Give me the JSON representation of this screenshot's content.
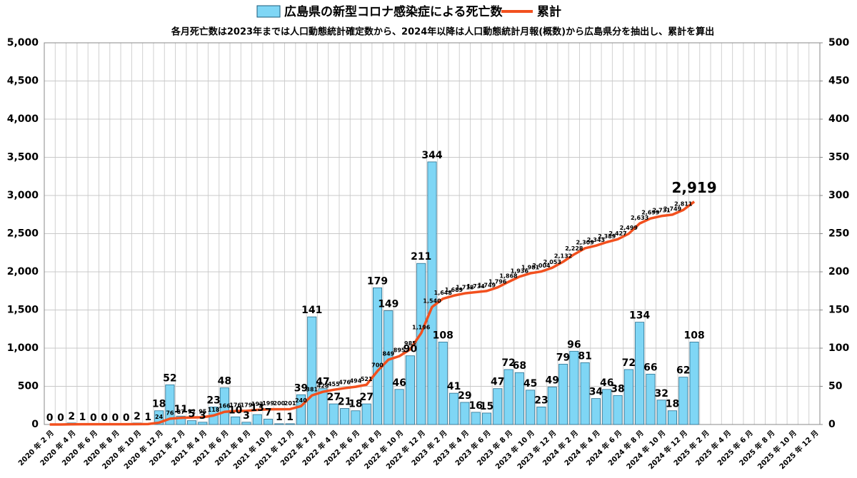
{
  "chart_data": {
    "type": "bar+line",
    "subtitle": "各月死亡数は2023年までは人口動態統計確定数から、2024年以降は人口動態統計月報(概数)から広島県分を抽出し、累計を算出",
    "categories": [
      "2020 年 2 月",
      null,
      "2020 年 4 月",
      null,
      "2020 年 6 月",
      null,
      "2020 年 8 月",
      null,
      "2020 年 10 月",
      null,
      "2020 年 12 月",
      null,
      "2021 年 2 月",
      null,
      "2021 年 4 月",
      null,
      "2021 年 6 月",
      null,
      "2021 年 8 月",
      null,
      "2021 年 10 月",
      null,
      "2021 年 12 月",
      null,
      "2022 年 2 月",
      null,
      "2022 年 4 月",
      null,
      "2022 年 6 月",
      null,
      "2022 年 8 月",
      null,
      "2022 年 10 月",
      null,
      "2022 年 12 月",
      null,
      "2023 年 2 月",
      null,
      "2023 年 4 月",
      null,
      "2023 年 6 月",
      null,
      "2023 年 8 月",
      null,
      "2023 年 10 月",
      null,
      "2023 年 12 月",
      null,
      "2024 年 2 月",
      null,
      "2024 年 4 月",
      null,
      "2024 年 6 月",
      null,
      "2024 年 8 月",
      null,
      "2024 年 10 月",
      null,
      "2024 年 12 月",
      null,
      "2025 年 2 月",
      null,
      "2025 年 4 月",
      null,
      "2025 年 6 月",
      null,
      "2025 年 8 月",
      null,
      "2025 年 10 月",
      null,
      "2025 年 12 月"
    ],
    "series": [
      {
        "name": "広島県の新型コロナ感染症による死亡数",
        "color": "#7fd6f5",
        "axis": "y2",
        "values": [
          0,
          0,
          2,
          1,
          0,
          0,
          0,
          0,
          2,
          1,
          18,
          52,
          11,
          5,
          3,
          23,
          48,
          10,
          3,
          13,
          7,
          1,
          1,
          39,
          141,
          47,
          27,
          21,
          18,
          27,
          179,
          149,
          46,
          90,
          211,
          344,
          108,
          41,
          29,
          16,
          15,
          47,
          72,
          68,
          45,
          23,
          49,
          79,
          96,
          81,
          34,
          46,
          38,
          72,
          134,
          66,
          32,
          18,
          62,
          108,
          null,
          null,
          null,
          null,
          null,
          null,
          null,
          null,
          null,
          null,
          null
        ]
      },
      {
        "name": "累計",
        "color": "#f2501e",
        "type": "line",
        "values": [
          0,
          0,
          2,
          3,
          3,
          3,
          3,
          3,
          5,
          6,
          24,
          76,
          87,
          92,
          95,
          118,
          166,
          176,
          179,
          192,
          199,
          200,
          201,
          240,
          381,
          428,
          455,
          476,
          494,
          521,
          700,
          849,
          895,
          985,
          1196,
          1540,
          1648,
          1689,
          1718,
          1734,
          1749,
          1796,
          1868,
          1936,
          1981,
          2004,
          2053,
          2132,
          2228,
          2309,
          2343,
          2389,
          2427,
          2499,
          2633,
          2699,
          2731,
          2749,
          2811,
          2919,
          null,
          null,
          null,
          null,
          null,
          null,
          null,
          null,
          null,
          null,
          null
        ],
        "value_labels": [
          null,
          null,
          null,
          null,
          null,
          null,
          null,
          null,
          null,
          null,
          "24",
          "76",
          "87",
          "92",
          "95",
          "118",
          "166",
          "176",
          "179",
          "192",
          "199",
          "200",
          "201",
          "240",
          "381",
          "428",
          "455",
          "476",
          "494",
          "521",
          "700",
          "849",
          "895",
          "985",
          "1,196",
          "1,540",
          "1,648",
          "1,689",
          "1,718",
          "1,734",
          "1,749",
          "1,796",
          "1,868",
          "1,936",
          "1,981",
          "2,004",
          "2,053",
          "2,132",
          "2,228",
          "2,309",
          "2,343",
          "2,389",
          "2,427",
          "2,499",
          "2,633",
          "2,699",
          "2,731",
          "2,749",
          "2,811",
          "2,919",
          null,
          null,
          null,
          null,
          null,
          null,
          null,
          null,
          null,
          null,
          null
        ]
      }
    ],
    "ylim": [
      0,
      5000
    ],
    "yticks": [
      0,
      500,
      {
        "value": 1000,
        "label": "1,000"
      },
      {
        "value": 1500,
        "label": "1,500"
      },
      {
        "value": 2000,
        "label": "2,000"
      },
      {
        "value": 2500,
        "label": "2,500"
      },
      {
        "value": 3000,
        "label": "3,000"
      },
      {
        "value": 3500,
        "label": "3,500"
      },
      {
        "value": 4000,
        "label": "4,000"
      },
      {
        "value": 4500,
        "label": "4,500"
      },
      {
        "value": 5000,
        "label": "5,000"
      }
    ],
    "y2lim": [
      0,
      500
    ],
    "y2ticks": [
      0,
      50,
      100,
      150,
      200,
      250,
      300,
      350,
      400,
      450,
      500
    ],
    "grid": true
  }
}
